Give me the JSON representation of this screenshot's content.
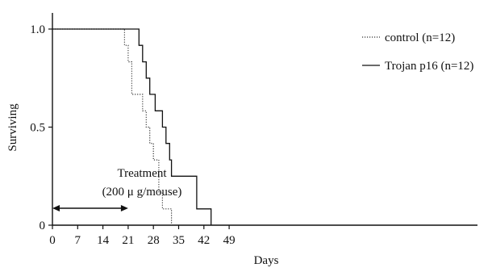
{
  "chart_data": {
    "type": "line",
    "step": true,
    "xlabel": "Days",
    "ylabel": "Surviving",
    "xlim": [
      0,
      52
    ],
    "ylim": [
      0,
      1.0
    ],
    "x_ticks": [
      0,
      7,
      14,
      21,
      28,
      35,
      42,
      49
    ],
    "x_tick_labels": [
      "0",
      "7",
      "14",
      "21",
      "28",
      "35",
      "42",
      "49"
    ],
    "y_ticks": [
      0,
      0.5,
      1.0
    ],
    "y_tick_labels": [
      "0",
      "0.5",
      "1.0"
    ],
    "legend_position": "top-right",
    "series": [
      {
        "name": "control (n=12)",
        "style": "dotted",
        "color": "#333333",
        "points": [
          [
            0,
            1.0
          ],
          [
            20,
            1.0
          ],
          [
            20,
            0.917
          ],
          [
            21,
            0.917
          ],
          [
            21,
            0.833
          ],
          [
            22,
            0.833
          ],
          [
            22,
            0.667
          ],
          [
            25,
            0.667
          ],
          [
            25,
            0.583
          ],
          [
            26,
            0.583
          ],
          [
            26,
            0.5
          ],
          [
            27,
            0.5
          ],
          [
            27,
            0.417
          ],
          [
            28,
            0.417
          ],
          [
            28,
            0.333
          ],
          [
            29.5,
            0.333
          ],
          [
            29.5,
            0.167
          ],
          [
            30.5,
            0.167
          ],
          [
            30.5,
            0.083
          ],
          [
            33,
            0.083
          ],
          [
            33,
            0
          ]
        ]
      },
      {
        "name": "Trojan p16 (n=12)",
        "style": "solid",
        "color": "#111111",
        "points": [
          [
            0,
            1.0
          ],
          [
            24,
            1.0
          ],
          [
            24,
            0.917
          ],
          [
            25,
            0.917
          ],
          [
            25,
            0.833
          ],
          [
            26,
            0.833
          ],
          [
            26,
            0.75
          ],
          [
            27,
            0.75
          ],
          [
            27,
            0.667
          ],
          [
            28.5,
            0.667
          ],
          [
            28.5,
            0.583
          ],
          [
            30.5,
            0.583
          ],
          [
            30.5,
            0.5
          ],
          [
            31.5,
            0.5
          ],
          [
            31.5,
            0.417
          ],
          [
            32.5,
            0.417
          ],
          [
            32.5,
            0.333
          ],
          [
            33,
            0.333
          ],
          [
            33,
            0.25
          ],
          [
            40,
            0.25
          ],
          [
            40,
            0.083
          ],
          [
            44,
            0.083
          ],
          [
            44,
            0
          ]
        ]
      }
    ],
    "annotations": [
      {
        "text_line1": "Treatment",
        "text_line2": "(200 μ g/mouse)",
        "arrow_from": 0,
        "arrow_to": 21
      }
    ]
  }
}
